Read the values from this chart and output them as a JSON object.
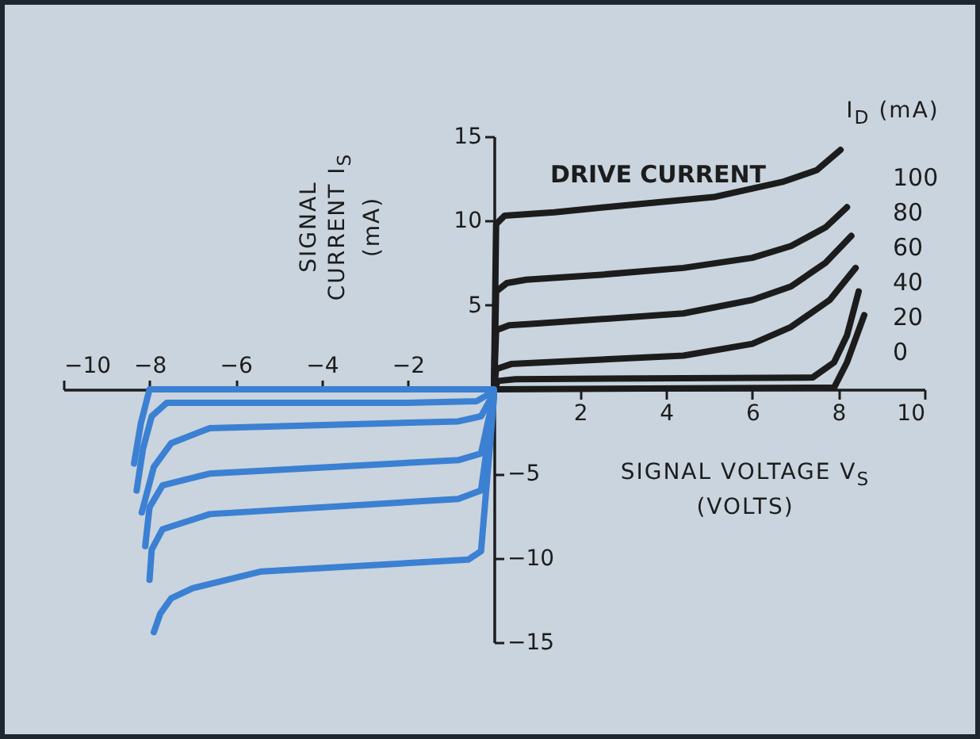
{
  "chart_data": {
    "type": "line",
    "xlabel": "SIGNAL VOLTAGE V$_{S}$\n(VOLTS)",
    "ylabel": "SIGNAL\nCURRENT I$_{S}$\n(mA)",
    "legend_title": "I$_{D}$ (mA)",
    "annotations": [
      "DRIVE CURRENT"
    ],
    "xlim": [
      -10,
      10
    ],
    "ylim": [
      -15,
      15
    ],
    "xticks": [
      2,
      4,
      6,
      8,
      10
    ],
    "x2lim": [
      -10,
      10
    ],
    "x2ticks": [
      -10,
      -8,
      -6,
      -4,
      -2
    ],
    "yticks": [
      5,
      10,
      15
    ],
    "y2lim": [
      -15,
      15
    ],
    "y2ticks": [
      -15,
      -10,
      -5
    ],
    "series": [
      {
        "name": "100",
        "color": "#1c1c1c",
        "x": [
          0,
          0.05,
          0.25,
          1.4,
          3,
          5.1,
          6.7,
          7.5,
          8.05
        ],
        "values": [
          0,
          9.8,
          10.3,
          10.5,
          10.9,
          11.4,
          12.3,
          13.0,
          14.2
        ]
      },
      {
        "name": "80",
        "color": "#1c1c1c",
        "x": [
          0,
          0.05,
          0.3,
          0.75,
          2.5,
          4.4,
          6,
          6.9,
          7.7,
          8.2
        ],
        "values": [
          0,
          5.8,
          6.3,
          6.5,
          6.8,
          7.2,
          7.8,
          8.5,
          9.6,
          10.8
        ]
      },
      {
        "name": "60",
        "color": "#1c1c1c",
        "x": [
          0,
          0.05,
          0.35,
          1,
          4.4,
          6,
          6.9,
          7.7,
          8.3
        ],
        "values": [
          0,
          3.5,
          3.8,
          3.9,
          4.5,
          5.3,
          6.1,
          7.5,
          9.1
        ]
      },
      {
        "name": "40",
        "color": "#1c1c1c",
        "x": [
          0,
          0.05,
          0.4,
          4.4,
          6,
          6.9,
          7.8,
          8.4
        ],
        "values": [
          0,
          1.2,
          1.5,
          2.0,
          2.7,
          3.7,
          5.3,
          7.2
        ]
      },
      {
        "name": "20",
        "color": "#1c1c1c",
        "x": [
          0,
          0.1,
          0.5,
          7.4,
          7.9,
          8.2,
          8.47
        ],
        "values": [
          0,
          0.5,
          0.6,
          0.7,
          1.6,
          3.2,
          5.8
        ]
      },
      {
        "name": "0",
        "color": "#1c1c1c",
        "x": [
          0,
          7.9,
          8.2,
          8.6
        ],
        "values": [
          0,
          0.1,
          1.6,
          4.4
        ]
      },
      {
        "color": "#3b80d2",
        "x": [
          0,
          -8,
          -8.2,
          -8.36
        ],
        "values": [
          0,
          0,
          -2,
          -4.4
        ]
      },
      {
        "color": "#3b80d2",
        "x": [
          0,
          -0.4,
          -2,
          -7.6,
          -7.95,
          -8.15,
          -8.3
        ],
        "values": [
          -0.1,
          -0.7,
          -0.8,
          -0.8,
          -1.6,
          -3.5,
          -6.0
        ]
      },
      {
        "color": "#3b80d2",
        "x": [
          0,
          -0.3,
          -0.83,
          -6.6,
          -7.5,
          -7.9,
          -8.18
        ],
        "values": [
          -0.2,
          -1.6,
          -1.9,
          -2.3,
          -3.2,
          -4.6,
          -7.3
        ]
      },
      {
        "color": "#3b80d2",
        "x": [
          0,
          -0.3,
          -0.83,
          -6.6,
          -7.7,
          -8.0,
          -8.1
        ],
        "values": [
          -0.3,
          -3.8,
          -4.2,
          -5.0,
          -5.7,
          -7.0,
          -9.3
        ]
      },
      {
        "color": "#3b80d2",
        "x": [
          0,
          -0.3,
          -0.83,
          -6.6,
          -7.7,
          -7.95,
          -8.0
        ],
        "values": [
          -0.4,
          -6.0,
          -6.5,
          -7.4,
          -8.3,
          -9.5,
          -11.3
        ]
      },
      {
        "color": "#3b80d2",
        "x": [
          0,
          -0.3,
          -0.6,
          -5.4,
          -7.0,
          -7.5,
          -7.75,
          -7.9
        ],
        "values": [
          -0.5,
          -9.6,
          -10.1,
          -10.8,
          -11.8,
          -12.4,
          -13.3,
          -14.4
        ]
      }
    ]
  }
}
